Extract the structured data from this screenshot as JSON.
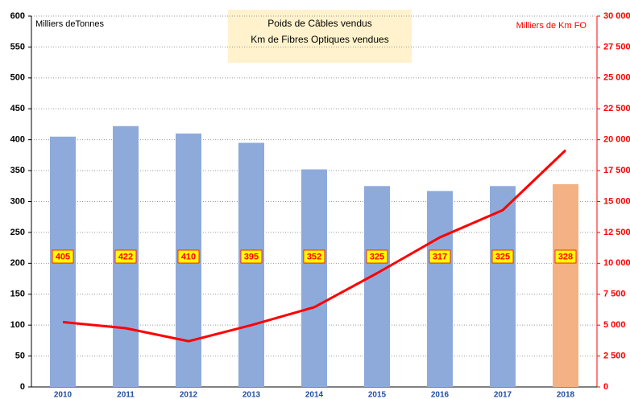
{
  "chart_data": {
    "type": "bar-line",
    "title": "Poids de Câbles vendus",
    "subtitle": "Km de Fibres Optiques vendues",
    "y_label": "Milliers deTonnes",
    "y2_label": "Milliers de Km FO",
    "categories": [
      "2010",
      "2011",
      "2012",
      "2013",
      "2014",
      "2015",
      "2016",
      "2017",
      "2018"
    ],
    "series": [
      {
        "type": "bar",
        "colors": [
          "#8eaadb",
          "#8eaadb",
          "#8eaadb",
          "#8eaadb",
          "#8eaadb",
          "#8eaadb",
          "#8eaadb",
          "#8eaadb",
          "#f4b183"
        ],
        "values": [
          405,
          422,
          410,
          395,
          352,
          325,
          317,
          325,
          328
        ]
      },
      {
        "type": "line",
        "axis": "y2",
        "color": "#ff0000",
        "values": [
          5250,
          4750,
          3700,
          5000,
          6450,
          9200,
          12100,
          14300,
          19150
        ]
      }
    ],
    "ylim": [
      0,
      600
    ],
    "yticks": [
      0,
      50,
      100,
      150,
      200,
      250,
      300,
      350,
      400,
      450,
      500,
      550,
      600
    ],
    "y2lim": [
      0,
      30000
    ],
    "y2ticks": [
      0,
      {
        "value": 2500,
        "label": "2 500"
      },
      {
        "value": 5000,
        "label": "5 000"
      },
      {
        "value": 7500,
        "label": "7 500"
      },
      {
        "value": 10000,
        "label": "10 000"
      },
      {
        "value": 12500,
        "label": "12 500"
      },
      {
        "value": 15000,
        "label": "15 000"
      },
      {
        "value": 17500,
        "label": "17 500"
      },
      {
        "value": 20000,
        "label": "20 000"
      },
      {
        "value": 22500,
        "label": "22 500"
      },
      {
        "value": 25000,
        "label": "25 000"
      },
      {
        "value": 27500,
        "label": "27 500"
      },
      {
        "value": 30000,
        "label": "30 000"
      }
    ],
    "grid": true
  }
}
